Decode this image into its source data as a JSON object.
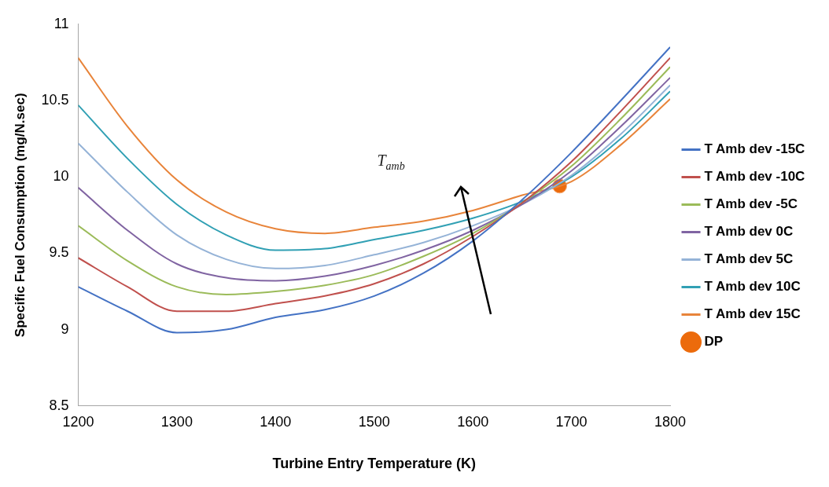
{
  "chart_data": {
    "type": "line",
    "xlabel": "Turbine Entry Temperature (K)",
    "ylabel": "Specific Fuel Consumption (mg/N.sec)",
    "xlim": [
      1200,
      1800
    ],
    "xticks": [
      1200,
      1300,
      1400,
      1500,
      1600,
      1700,
      1800
    ],
    "ylim": [
      8.5,
      11
    ],
    "yticks": [
      8.5,
      9,
      9.5,
      10,
      10.5,
      11
    ],
    "grid": false,
    "legend": "right",
    "marker": "none",
    "annotations": [
      "T$_{amb}$"
    ],
    "x": [
      1200,
      1250,
      1300,
      1350,
      1400,
      1450,
      1500,
      1550,
      1600,
      1650,
      1700,
      1750,
      1800
    ],
    "series": [
      {
        "name": "T Amb dev -15C",
        "color": "#4472c4",
        "values": [
          9.28,
          9.12,
          8.98,
          9.0,
          9.08,
          9.13,
          9.22,
          9.37,
          9.58,
          9.85,
          10.16,
          10.5,
          10.85
        ]
      },
      {
        "name": "T Amb dev -10C",
        "color": "#c0504d",
        "values": [
          9.47,
          9.28,
          9.12,
          9.12,
          9.17,
          9.22,
          9.3,
          9.43,
          9.61,
          9.83,
          10.1,
          10.43,
          10.78
        ]
      },
      {
        "name": "T Amb dev -5C",
        "color": "#9bbb59",
        "values": [
          9.68,
          9.45,
          9.28,
          9.23,
          9.25,
          9.29,
          9.36,
          9.48,
          9.63,
          9.83,
          10.07,
          10.38,
          10.72
        ]
      },
      {
        "name": "T Amb dev 0C",
        "color": "#8064a2",
        "values": [
          9.93,
          9.65,
          9.43,
          9.34,
          9.32,
          9.35,
          9.42,
          9.52,
          9.65,
          9.82,
          10.04,
          10.33,
          10.65
        ]
      },
      {
        "name": "T Amb dev 5C",
        "color": "#95b3d7",
        "values": [
          10.22,
          9.9,
          9.62,
          9.46,
          9.4,
          9.42,
          9.49,
          9.57,
          9.68,
          9.82,
          10.01,
          10.28,
          10.6
        ]
      },
      {
        "name": "T Amb dev 10C",
        "color": "#31a0b4",
        "values": [
          10.47,
          10.12,
          9.82,
          9.62,
          9.52,
          9.53,
          9.59,
          9.65,
          9.73,
          9.84,
          10.0,
          10.25,
          10.56
        ]
      },
      {
        "name": "T Amb dev 15C",
        "color": "#e8843a",
        "values": [
          10.78,
          10.33,
          9.98,
          9.77,
          9.66,
          9.63,
          9.67,
          9.71,
          9.78,
          9.88,
          9.97,
          10.21,
          10.51
        ]
      },
      {
        "name": "DP",
        "type": "scatter",
        "marker": "circle",
        "color": "#ec6b0c",
        "x": [
          1688
        ],
        "values": [
          9.94
        ]
      }
    ]
  }
}
